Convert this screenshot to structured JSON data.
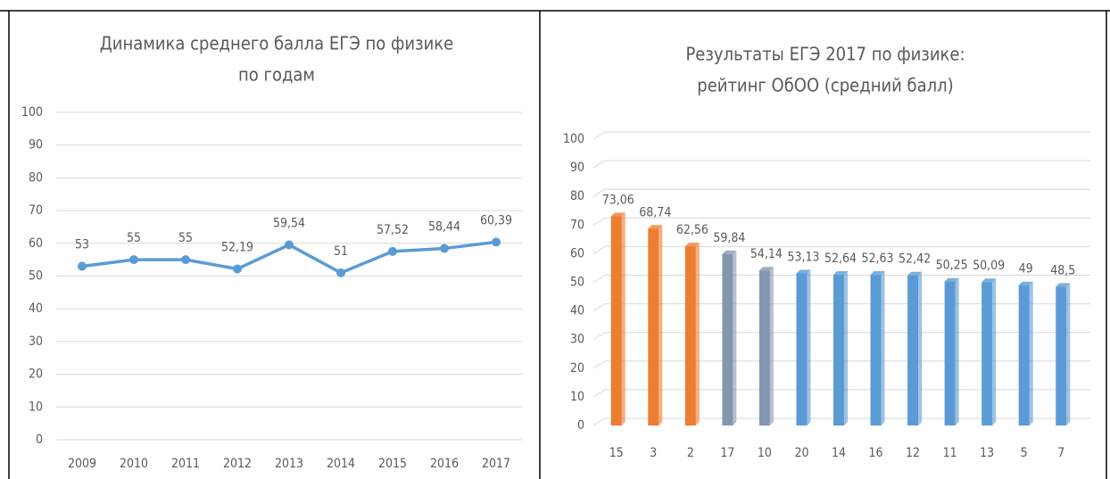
{
  "chart_data": [
    {
      "type": "line",
      "title": [
        "Динамика среднего балла ЕГЭ по физике",
        "по годам"
      ],
      "categories": [
        "2009",
        "2010",
        "2011",
        "2012",
        "2013",
        "2014",
        "2015",
        "2016",
        "2017"
      ],
      "values": [
        53,
        55,
        55,
        52.19,
        59.54,
        51,
        57.52,
        58.44,
        60.39
      ],
      "value_labels": [
        "53",
        "55",
        "55",
        "52,19",
        "59,54",
        "51",
        "57,52",
        "58,44",
        "60,39"
      ],
      "color": "#5b9bd5",
      "ylim": [
        0,
        100
      ],
      "yticks": [
        0,
        10,
        20,
        30,
        40,
        50,
        60,
        70,
        80,
        90,
        100
      ],
      "grid": true
    },
    {
      "type": "bar",
      "title": [
        "Результаты ЕГЭ 2017 по физике:",
        "рейтинг ОбОО (средний балл)"
      ],
      "categories": [
        "15",
        "3",
        "2",
        "17",
        "10",
        "20",
        "14",
        "16",
        "12",
        "11",
        "13",
        "5",
        "7"
      ],
      "values": [
        73.06,
        68.74,
        62.56,
        59.84,
        54.14,
        53.13,
        52.64,
        52.63,
        52.42,
        50.25,
        50.09,
        49,
        48.5
      ],
      "value_labels": [
        "73,06",
        "68,74",
        "62,56",
        "59,84",
        "54,14",
        "53,13",
        "52,64",
        "52,63",
        "52,42",
        "50,25",
        "50,09",
        "49",
        "48,5"
      ],
      "colors": [
        "#ed7d31",
        "#ed7d31",
        "#ed7d31",
        "#8497b0",
        "#8497b0",
        "#5b9bd5",
        "#5b9bd5",
        "#5b9bd5",
        "#5b9bd5",
        "#5b9bd5",
        "#5b9bd5",
        "#5b9bd5",
        "#5b9bd5"
      ],
      "ylim": [
        0,
        100
      ],
      "yticks": [
        0,
        10,
        20,
        30,
        40,
        50,
        60,
        70,
        80,
        90,
        100
      ],
      "grid": true
    }
  ]
}
